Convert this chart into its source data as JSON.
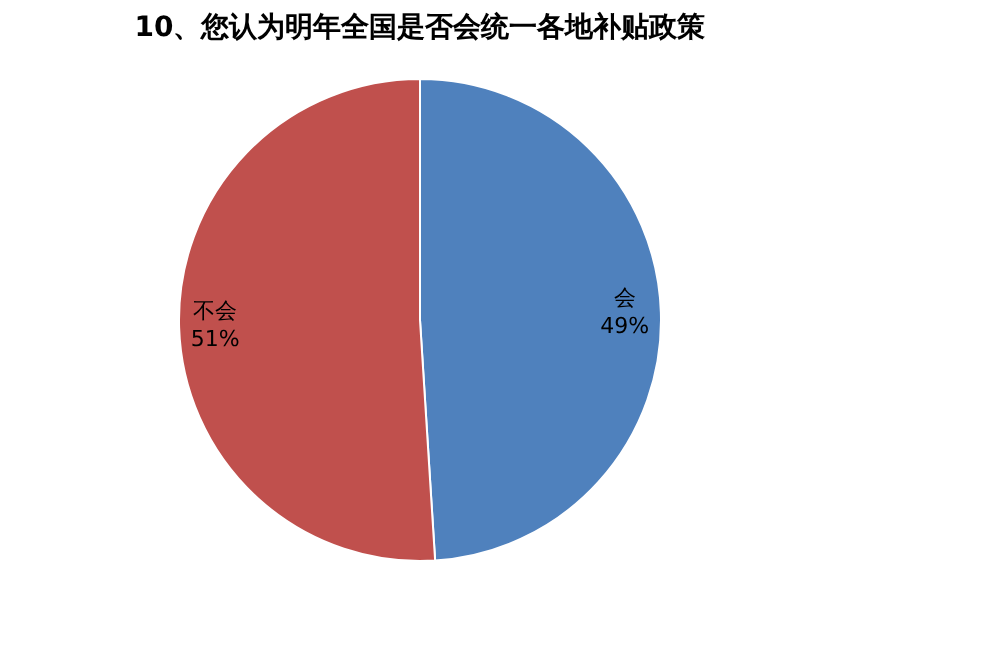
{
  "chart_data": {
    "type": "pie",
    "title": "10、您认为明年全国是否会统一各地补贴政策",
    "categories": [
      "会",
      "不会"
    ],
    "values": [
      49,
      51
    ],
    "value_labels": [
      "49%",
      "51%"
    ],
    "colors": [
      "#4f81bd",
      "#c0504d"
    ],
    "legend": false
  }
}
